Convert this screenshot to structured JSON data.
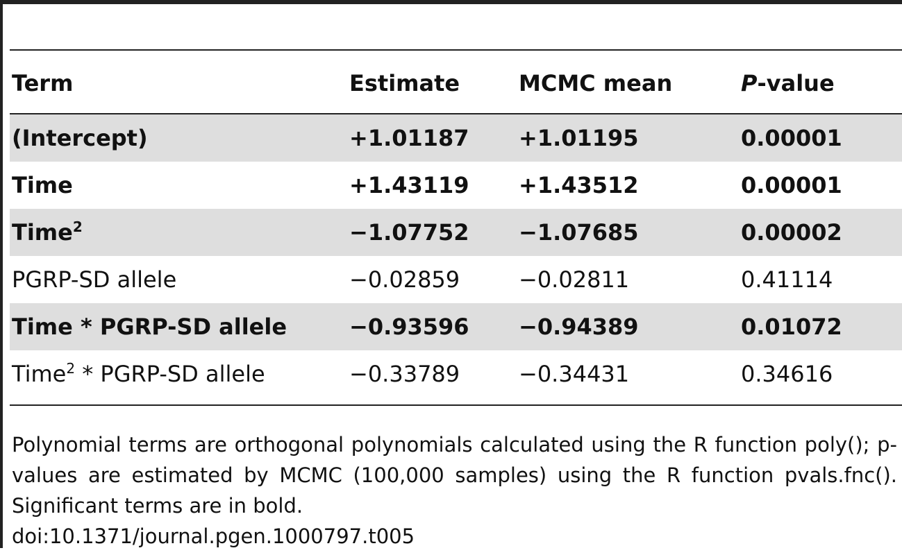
{
  "table": {
    "headers": {
      "term": "Term",
      "estimate": "Estimate",
      "mcmc_mean": "MCMC mean",
      "p_prefix": "P",
      "p_suffix": "-value"
    },
    "rows": [
      {
        "term": "(Intercept)",
        "term_sup": "",
        "term_suffix": "",
        "estimate": "+1.01187",
        "mcmc_mean": "+1.01195",
        "p_value": "0.00001",
        "bold": true,
        "shaded": true
      },
      {
        "term": "Time",
        "term_sup": "",
        "term_suffix": "",
        "estimate": "+1.43119",
        "mcmc_mean": "+1.43512",
        "p_value": "0.00001",
        "bold": true,
        "shaded": false
      },
      {
        "term": "Time",
        "term_sup": "2",
        "term_suffix": "",
        "estimate": "−1.07752",
        "mcmc_mean": "−1.07685",
        "p_value": "0.00002",
        "bold": true,
        "shaded": true
      },
      {
        "term": "PGRP-SD allele",
        "term_sup": "",
        "term_suffix": "",
        "estimate": "−0.02859",
        "mcmc_mean": "−0.02811",
        "p_value": "0.41114",
        "bold": false,
        "shaded": false
      },
      {
        "term": "Time * PGRP-SD allele",
        "term_sup": "",
        "term_suffix": "",
        "estimate": "−0.93596",
        "mcmc_mean": "−0.94389",
        "p_value": "0.01072",
        "bold": true,
        "shaded": true
      },
      {
        "term": "Time",
        "term_sup": "2",
        "term_suffix": " * PGRP-SD allele",
        "estimate": "−0.33789",
        "mcmc_mean": "−0.34431",
        "p_value": "0.34616",
        "bold": false,
        "shaded": false
      }
    ]
  },
  "footnote": "Polynomial terms are orthogonal polynomials calculated using the R function poly(); p-values are estimated by MCMC (100,000 samples) using the R function pvals.fnc(). Significant terms are in bold.",
  "doi": "doi:10.1371/journal.pgen.1000797.t005"
}
